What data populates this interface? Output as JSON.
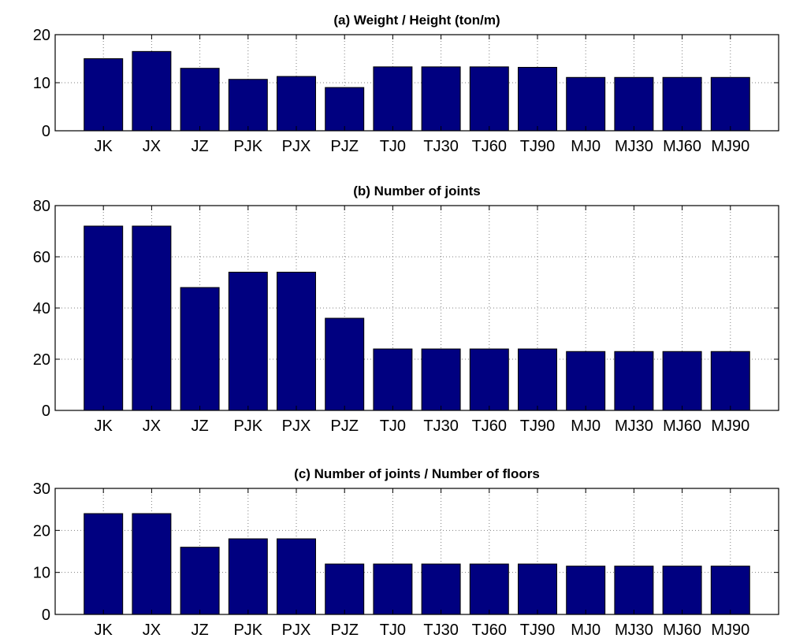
{
  "chart_data": [
    {
      "type": "bar",
      "title": "(a) Weight / Height (ton/m)",
      "categories": [
        "JK",
        "JX",
        "JZ",
        "PJK",
        "PJX",
        "PJZ",
        "TJ0",
        "TJ30",
        "TJ60",
        "TJ90",
        "MJ0",
        "MJ30",
        "MJ60",
        "MJ90"
      ],
      "values": [
        15,
        16.5,
        13,
        10.7,
        11.3,
        9,
        13.3,
        13.3,
        13.3,
        13.2,
        11.1,
        11.1,
        11.1,
        11.1
      ],
      "yticks": [
        "0",
        "10",
        "20"
      ],
      "ylim": [
        0,
        20
      ],
      "grid": true,
      "bar_color": "#000080"
    },
    {
      "type": "bar",
      "title": "(b) Number of joints",
      "categories": [
        "JK",
        "JX",
        "JZ",
        "PJK",
        "PJX",
        "PJZ",
        "TJ0",
        "TJ30",
        "TJ60",
        "TJ90",
        "MJ0",
        "MJ30",
        "MJ60",
        "MJ90"
      ],
      "values": [
        72,
        72,
        48,
        54,
        54,
        36,
        24,
        24,
        24,
        24,
        23,
        23,
        23,
        23
      ],
      "yticks": [
        "0",
        "20",
        "40",
        "60",
        "80"
      ],
      "ylim": [
        0,
        80
      ],
      "grid": true,
      "bar_color": "#000080"
    },
    {
      "type": "bar",
      "title": "(c) Number of joints / Number of floors",
      "categories": [
        "JK",
        "JX",
        "JZ",
        "PJK",
        "PJX",
        "PJZ",
        "TJ0",
        "TJ30",
        "TJ60",
        "TJ90",
        "MJ0",
        "MJ30",
        "MJ60",
        "MJ90"
      ],
      "values": [
        24,
        24,
        16,
        18,
        18,
        12,
        12,
        12,
        12,
        12,
        11.5,
        11.5,
        11.5,
        11.5
      ],
      "yticks": [
        "0",
        "10",
        "20",
        "30"
      ],
      "ylim": [
        0,
        30
      ],
      "grid": true,
      "bar_color": "#000080"
    }
  ]
}
